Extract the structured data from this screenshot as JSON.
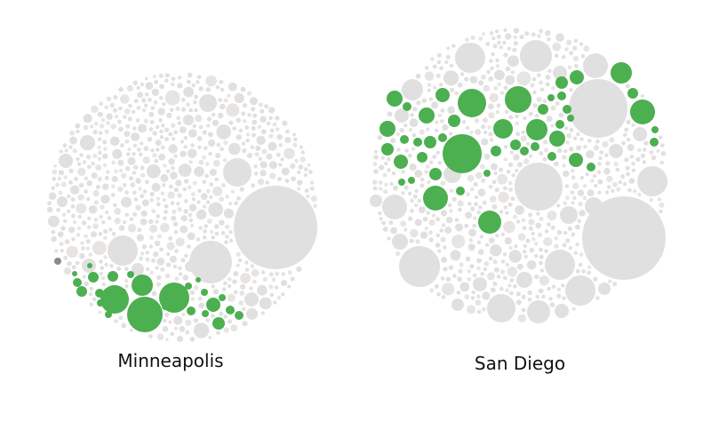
{
  "chart_data": [
    {
      "type": "packed-bubble",
      "title": "Minneapolis",
      "colors": {
        "highlight": "#4caf50",
        "base": "#e0e0e0",
        "faint": "#e8e4e2",
        "marker": "#8a8a8a"
      },
      "highlighted_bubble_count": 27,
      "total_bubble_count_estimate": 650,
      "largest_bubble": {
        "color": "gray",
        "relative_size": 1.0
      }
    },
    {
      "type": "packed-bubble",
      "title": "San Diego",
      "colors": {
        "highlight": "#4caf50",
        "base": "#e0e0e0",
        "faint": "#e8e4e2"
      },
      "highlighted_bubble_count": 47,
      "total_bubble_count_estimate": 550,
      "largest_bubble": {
        "color": "gray",
        "relative_size": 1.0
      }
    }
  ]
}
